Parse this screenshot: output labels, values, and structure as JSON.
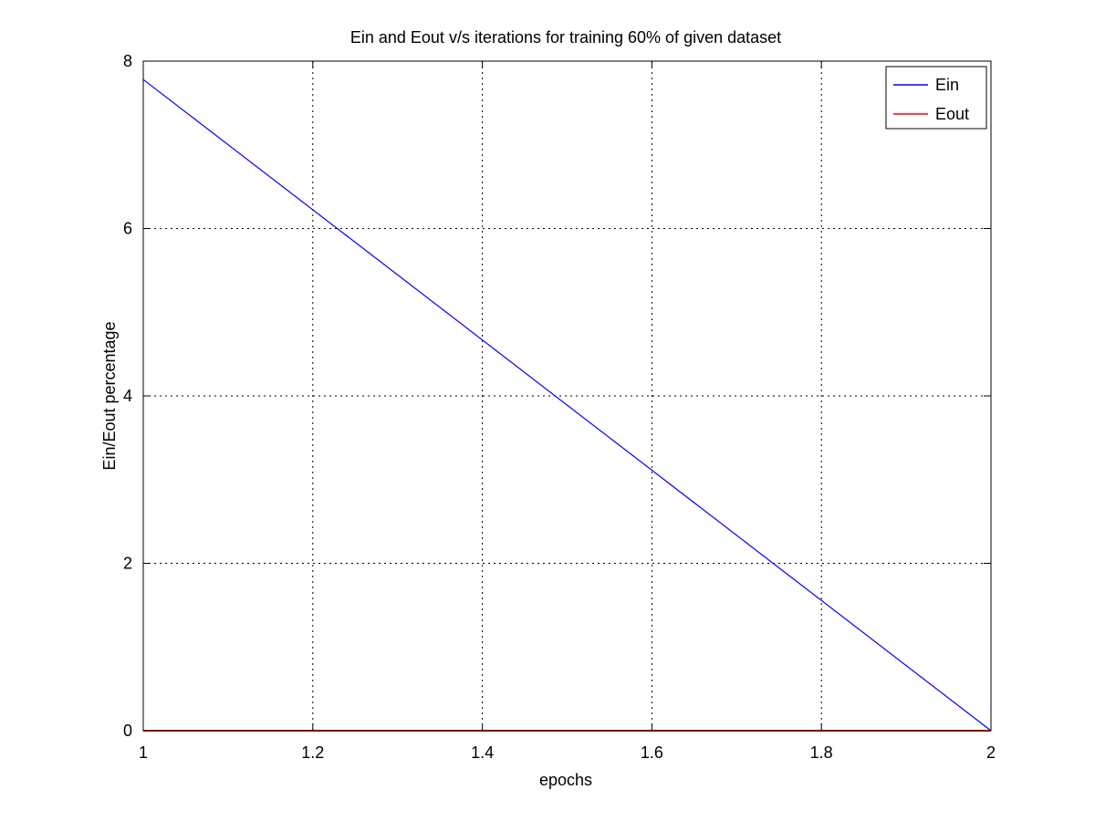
{
  "chart_data": {
    "type": "line",
    "title": "Ein and Eout v/s iterations for training 60% of given dataset",
    "xlabel": "epochs",
    "ylabel": "Ein/Eout percentage",
    "xlim": [
      1,
      2
    ],
    "ylim": [
      0,
      8
    ],
    "xticks": [
      1,
      1.2,
      1.4,
      1.6,
      1.8,
      2
    ],
    "xtick_labels": [
      "1",
      "1.2",
      "1.4",
      "1.6",
      "1.8",
      "2"
    ],
    "yticks": [
      0,
      2,
      4,
      6,
      8
    ],
    "ytick_labels": [
      "0",
      "2",
      "4",
      "6",
      "8"
    ],
    "grid": true,
    "legend_position": "top-right",
    "series": [
      {
        "name": "Ein",
        "color": "#0000ff",
        "x": [
          1,
          2
        ],
        "y": [
          7.78,
          0
        ]
      },
      {
        "name": "Eout",
        "color": "#ff0000",
        "x": [
          1,
          2
        ],
        "y": [
          0,
          0
        ]
      }
    ]
  }
}
